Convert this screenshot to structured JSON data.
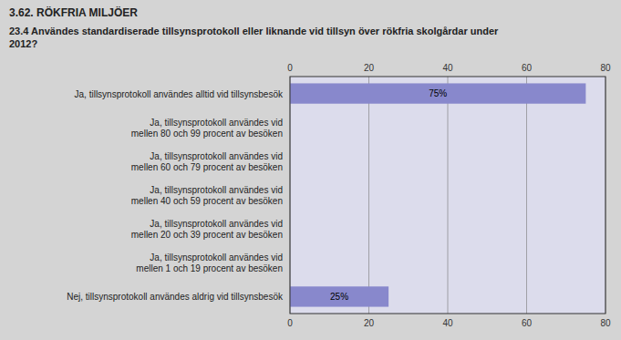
{
  "chart_data": {
    "type": "bar",
    "orientation": "horizontal",
    "title": "3.62. RÖKFRIA MILJÖER",
    "subtitle": "23.4 Användes standardiserade tillsynsprotokoll eller liknande vid tillsyn över rökfria skolgårdar  under\n2012?",
    "categories": [
      "Ja, tillsynsprotokoll användes alltid vid tillsynsbesök",
      "Ja, tillsynsprotokoll användes vid\nmellen 80 och 99 procent av besöken",
      "Ja, tillsynsprotokoll användes vid\nmellen 60 och 79 procent av besöken",
      "Ja, tillsynsprotokoll användes vid\nmellen 40 och 59 procent av besöken",
      "Ja, tillsynsprotokoll användes vid\nmellen 20 och 39 procent av besöken",
      "Ja, tillsynsprotokoll användes vid\nmellen 1 och 19 procent av besöken",
      "Nej, tillsynsprotokoll användes aldrig vid tillsynsbesök"
    ],
    "values": [
      75,
      0,
      0,
      0,
      0,
      0,
      25
    ],
    "value_labels": [
      "75%",
      null,
      null,
      null,
      null,
      null,
      "25%"
    ],
    "color": "#8888cc",
    "xlim": [
      0,
      80
    ],
    "xticks": [
      0,
      20,
      40,
      60,
      80
    ],
    "grid": true
  }
}
